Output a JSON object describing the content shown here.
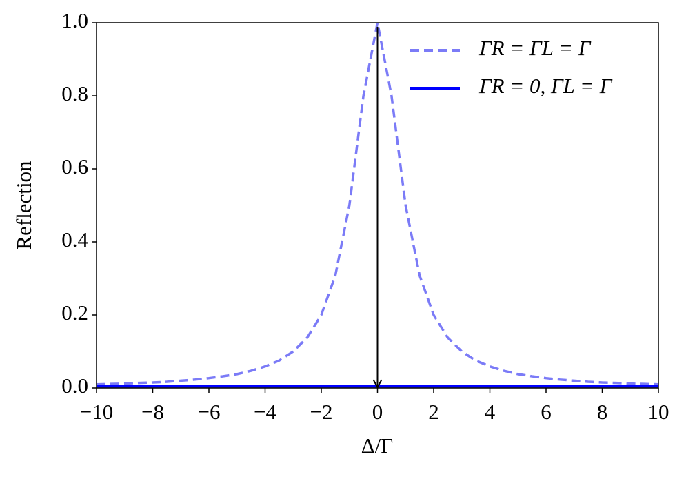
{
  "chart_data": {
    "type": "line",
    "xlabel": "Δ/Γ",
    "ylabel": "Reflection",
    "x": [
      -10,
      -9.5,
      -9,
      -8.5,
      -8,
      -7.5,
      -7,
      -6.5,
      -6,
      -5.5,
      -5,
      -4.5,
      -4,
      -3.5,
      -3,
      -2.5,
      -2,
      -1.5,
      -1,
      -0.5,
      0,
      0.5,
      1,
      1.5,
      2,
      2.5,
      3,
      3.5,
      4,
      4.5,
      5,
      5.5,
      6,
      6.5,
      7,
      7.5,
      8,
      8.5,
      9,
      9.5,
      10
    ],
    "series": [
      {
        "name": "ΓR = ΓL = Γ",
        "color": "#7b7bf7",
        "dashed": true,
        "values": [
          0.01,
          0.011,
          0.012,
          0.014,
          0.015,
          0.017,
          0.02,
          0.023,
          0.027,
          0.032,
          0.038,
          0.047,
          0.059,
          0.075,
          0.1,
          0.138,
          0.2,
          0.308,
          0.5,
          0.8,
          1,
          0.8,
          0.5,
          0.308,
          0.2,
          0.138,
          0.1,
          0.075,
          0.059,
          0.047,
          0.038,
          0.032,
          0.027,
          0.023,
          0.02,
          0.017,
          0.015,
          0.014,
          0.012,
          0.011,
          0.01
        ]
      },
      {
        "name": "ΓR = 0, ΓL = Γ",
        "color": "#0000ff",
        "dashed": false,
        "values": [
          0.005,
          0.005,
          0.005,
          0.005,
          0.005,
          0.005,
          0.005,
          0.005,
          0.005,
          0.005,
          0.005,
          0.005,
          0.005,
          0.005,
          0.005,
          0.005,
          0.005,
          0.005,
          0.005,
          0.005,
          0.005,
          0.005,
          0.005,
          0.005,
          0.005,
          0.005,
          0.005,
          0.005,
          0.005,
          0.005,
          0.005,
          0.005,
          0.005,
          0.005,
          0.005,
          0.005,
          0.005,
          0.005,
          0.005,
          0.005,
          0.005
        ]
      }
    ],
    "arrow": {
      "x": 0,
      "y_start": 1,
      "y_end": 0
    },
    "xlim": [
      -10,
      10
    ],
    "xticks": [
      {
        "value": -10,
        "label": "−10"
      },
      {
        "value": -8,
        "label": "−8"
      },
      {
        "value": -6,
        "label": "−6"
      },
      {
        "value": -4,
        "label": "−4"
      },
      {
        "value": -2,
        "label": "−2"
      },
      0,
      2,
      4,
      6,
      8,
      10
    ],
    "ylim": [
      0,
      1
    ],
    "yticks": [
      {
        "value": 0,
        "label": "0.0"
      },
      0.2,
      0.4,
      0.6,
      0.8,
      {
        "value": 1,
        "label": "1.0"
      }
    ],
    "legend": "upper right",
    "grid": false
  }
}
